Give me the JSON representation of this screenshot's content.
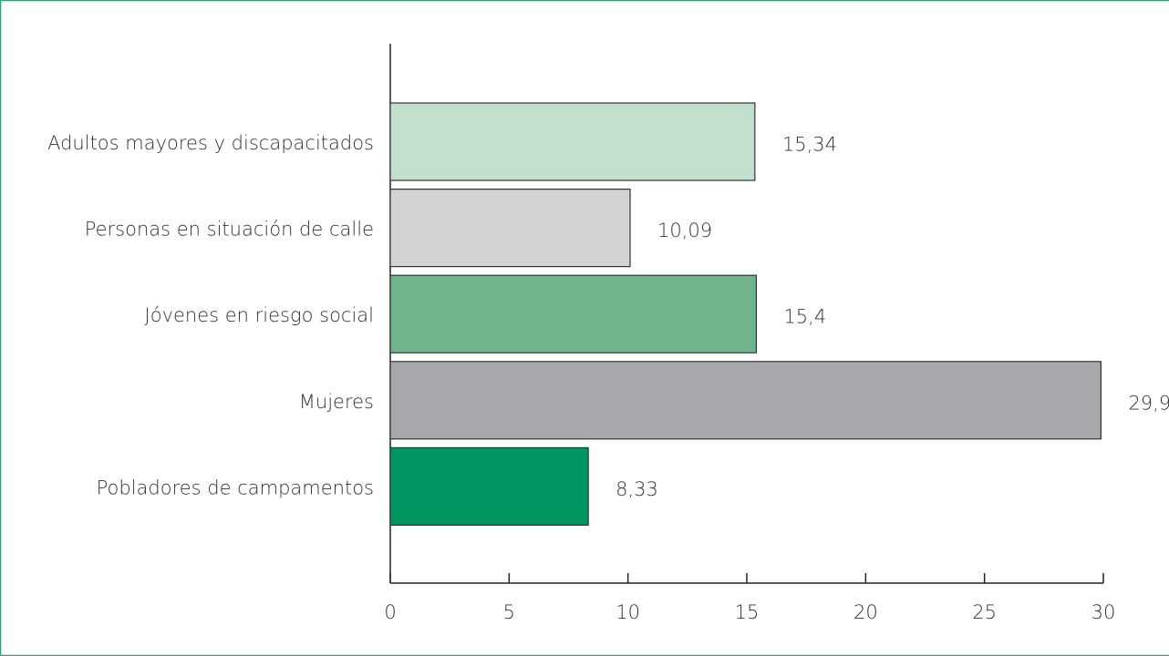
{
  "chart_data": {
    "type": "barh",
    "categories": [
      "Adultos mayores y discapacitados",
      "Personas en situación de calle",
      "Jóvenes en riesgo social",
      "Mujeres",
      "Pobladores de campamentos"
    ],
    "values": [
      15.34,
      10.09,
      15.4,
      29.9,
      8.33
    ],
    "value_labels": [
      "15,34",
      "10,09",
      "15,4",
      "29,9",
      "8,33"
    ],
    "colors": [
      "#c2dfcd",
      "#d1d3d5",
      "#6fb48d",
      "#a7a9ac",
      "#009661"
    ],
    "xlim": [
      0,
      30
    ],
    "xticks": [
      0,
      5,
      10,
      15,
      20,
      25,
      30
    ]
  }
}
